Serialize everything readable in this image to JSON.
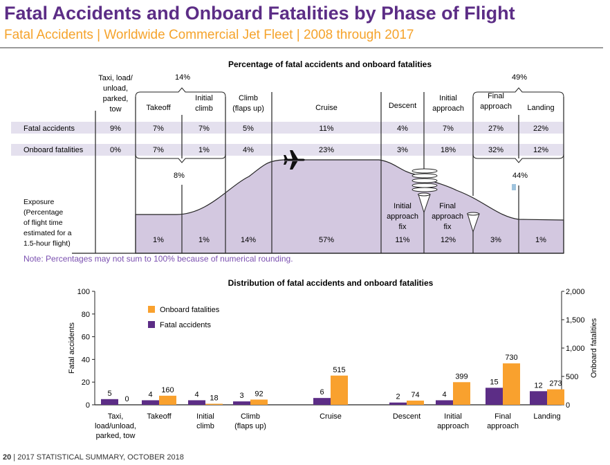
{
  "header": {
    "title": "Fatal Accidents and Onboard Fatalities by Phase of Flight",
    "subtitle": "Fatal Accidents | Worldwide Commercial Jet Fleet | 2008 through 2017"
  },
  "colors": {
    "title": "#5c2d86",
    "subtitle": "#f5a32b",
    "fatal_accidents": "#5c2d86",
    "onboard_fatalities": "#f9a12e",
    "exposure_fill": "#d3c8e0",
    "row_band": "#e4e0ee",
    "note": "#7a4fb0"
  },
  "phase_table": {
    "title": "Percentage of fatal accidents and onboard fatalities",
    "phases": [
      [
        "Taxi, load/",
        "unload,",
        "parked,",
        "tow"
      ],
      [
        "Takeoff"
      ],
      [
        "Initial",
        "climb"
      ],
      [
        "Climb",
        "(flaps up)"
      ],
      [
        "Cruise"
      ],
      [
        "Descent"
      ],
      [
        "Initial",
        "approach"
      ],
      [
        "Final",
        "approach"
      ],
      [
        "Landing"
      ]
    ],
    "row_labels": {
      "fatal": "Fatal accidents",
      "onboard": "Onboard fatalities"
    },
    "fatal_accidents": [
      "9%",
      "7%",
      "7%",
      "5%",
      "11%",
      "4%",
      "7%",
      "27%",
      "22%"
    ],
    "onboard_fatalities": [
      "0%",
      "7%",
      "1%",
      "4%",
      "23%",
      "3%",
      "18%",
      "32%",
      "12%"
    ],
    "exposure_label": [
      "Exposure",
      "(Percentage",
      "of flight time",
      "estimated for a",
      "1.5-hour flight)"
    ],
    "exposure": [
      "1%",
      "1%",
      "14%",
      "57%",
      "11%",
      "12%",
      "3%",
      "1%"
    ],
    "brace_takeoff_accidents": "14%",
    "brace_takeoff_fatalities": "8%",
    "brace_landing_accidents": "49%",
    "brace_landing_fatalities": "44%",
    "fix_labels": {
      "iaf": [
        "Initial",
        "approach",
        "fix"
      ],
      "faf": [
        "Final",
        "approach",
        "fix"
      ]
    },
    "note": "Note: Percentages may not sum to 100% because of numerical rounding."
  },
  "chart_data": {
    "type": "bar",
    "title": "Distribution of fatal accidents and onboard fatalities",
    "categories": [
      [
        "Taxi,",
        "load/unload,",
        "parked, tow"
      ],
      [
        "Takeoff"
      ],
      [
        "Initial",
        "climb"
      ],
      [
        "Climb",
        "(flaps up)"
      ],
      [
        "Cruise"
      ],
      [
        "Descent"
      ],
      [
        "Initial",
        "approach"
      ],
      [
        "Final",
        "approach"
      ],
      [
        "Landing"
      ]
    ],
    "series": [
      {
        "name": "Fatal accidents",
        "axis": "left",
        "values": [
          5,
          4,
          4,
          3,
          6,
          2,
          4,
          15,
          12
        ]
      },
      {
        "name": "Onboard fatalities",
        "axis": "right",
        "values": [
          0,
          160,
          18,
          92,
          515,
          74,
          399,
          730,
          273
        ]
      }
    ],
    "legend_order": [
      "Onboard fatalities",
      "Fatal accidents"
    ],
    "legend_position": "top-left",
    "ylabel_left": "Fatal accidents",
    "ylim_left": [
      0,
      100
    ],
    "yticks_left": [
      "0",
      "20",
      "40",
      "60",
      "80",
      "100"
    ],
    "ylabel_right": "Onboard fatalities",
    "ylim_right": [
      0,
      2000
    ],
    "yticks_right": [
      "0",
      "500",
      "1,000",
      "1,500",
      "2,000"
    ],
    "grid": false
  },
  "footer": {
    "page": "20",
    "text": " | 2017 STATISTICAL SUMMARY, OCTOBER 2018"
  }
}
